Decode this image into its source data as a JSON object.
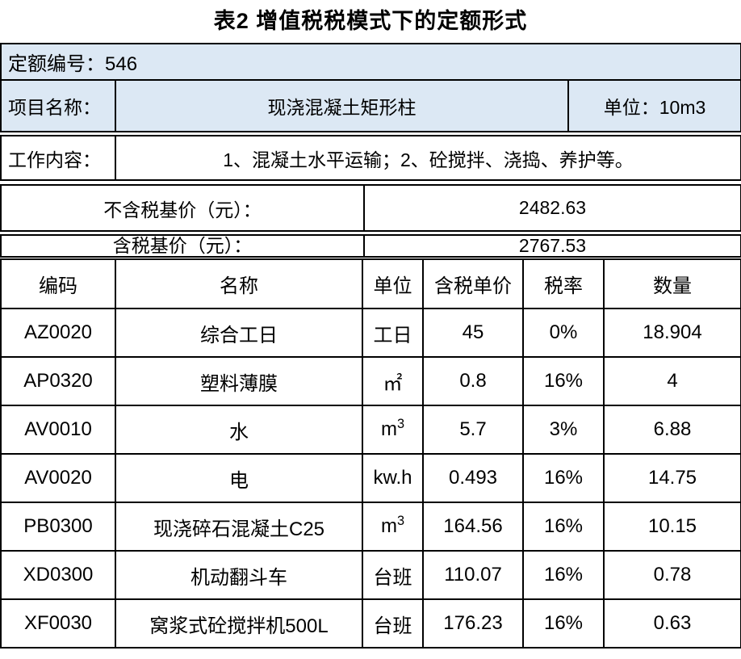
{
  "title": "表2 增值税税模式下的定额形式",
  "header": {
    "quota": {
      "label": "定额编号：",
      "value": "546"
    },
    "project_label": "项目名称：",
    "project_name": "现浇混凝土矩形柱",
    "unit_info": {
      "label": "单位：",
      "value": "10m3"
    },
    "work_label": "工作内容：",
    "work_content": "1、混凝土水平运输；2、砼搅拌、浇捣、养护等。"
  },
  "prices": {
    "excl_tax_label": "不含税基价（元）：",
    "excl_tax_value": "2482.63",
    "incl_tax_label": "含税基价（元）：",
    "incl_tax_value": "2767.53"
  },
  "table": {
    "headers": [
      "编码",
      "名称",
      "单位",
      "含税单价",
      "税率",
      "数量"
    ],
    "rows": [
      {
        "code": "AZ0020",
        "name": "综合工日",
        "unit": "工日",
        "price": "45",
        "tax": "0%",
        "qty": "18.904"
      },
      {
        "code": "AP0320",
        "name": "塑料薄膜",
        "unit": "㎡",
        "price": "0.8",
        "tax": "16%",
        "qty": "4"
      },
      {
        "code": "AV0010",
        "name": "水",
        "unit": "m³",
        "price": "5.7",
        "tax": "3%",
        "qty": "6.88"
      },
      {
        "code": "AV0020",
        "name": "电",
        "unit": "kw.h",
        "price": "0.493",
        "tax": "16%",
        "qty": "14.75"
      },
      {
        "code": "PB0300",
        "name": "现浇碎石混凝土C25",
        "unit": "m³",
        "price": "164.56",
        "tax": "16%",
        "qty": "10.15"
      },
      {
        "code": "XD0300",
        "name": "机动翻斗车",
        "unit": "台班",
        "price": "110.07",
        "tax": "16%",
        "qty": "0.78"
      },
      {
        "code": "XF0030",
        "name": "窝浆式砼搅拌机500L",
        "unit": "台班",
        "price": "176.23",
        "tax": "16%",
        "qty": "0.63"
      }
    ]
  },
  "colors": {
    "header_bg": "#dce8f4",
    "border": "#000000",
    "text": "#000000"
  }
}
